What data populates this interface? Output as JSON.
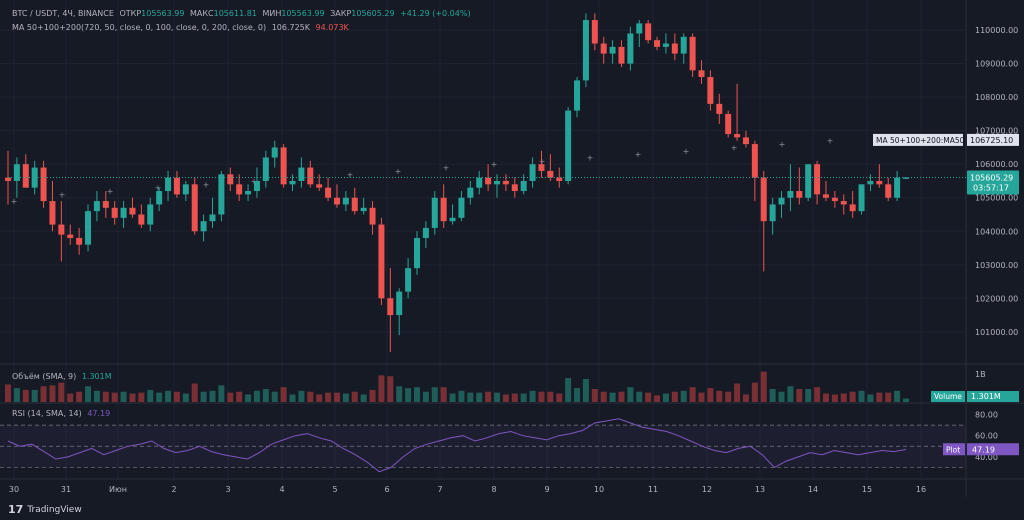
{
  "legend": {
    "symbol": "BTC / USDT, 4Ч, BINANCE",
    "open_label": "ОТКР",
    "open_value": "105563.99",
    "high_label": "МАКС",
    "high_value": "105611.81",
    "low_label": "МИН",
    "low_value": "105563.99",
    "close_label": "ЗАКР",
    "close_value": "105605.29",
    "change": "+41.29 (+0.04%)",
    "ma_name": "MA 50+100+200",
    "ma_params": "(720, 50, close, 0, 100, close, 0, 200, close, 0)",
    "ma_value_1": "106.725K",
    "ma_value_2": "94.073K"
  },
  "volume_legend": {
    "label": "Объём (SMA, 9)",
    "value": "1.301M"
  },
  "rsi_legend": {
    "label": "RSI (14, SMA, 14)",
    "value": "47.19"
  },
  "price_axis_labels": [
    "110000.00",
    "109000.00",
    "108000.00",
    "107000.00",
    "106000.00",
    "105000.00",
    "104000.00",
    "103000.00",
    "102000.00",
    "101000.00"
  ],
  "price_tags": {
    "ma_tag": "MA 50+100+200:MA50",
    "ma_value": "106725.10",
    "price": "105605.29",
    "countdown": "03:57:17"
  },
  "volume_axis": {
    "label": "1B",
    "tag_label": "Volume",
    "tag_value": "1.301M"
  },
  "rsi_axis": {
    "labels": [
      "80.00",
      "60.00",
      "40.00"
    ],
    "tag_label": "Plot",
    "tag_value": "47.19"
  },
  "time_axis": [
    "30",
    "31",
    "Июн",
    "2",
    "3",
    "4",
    "5",
    "6",
    "7",
    "8",
    "9",
    "10",
    "11",
    "12",
    "13",
    "14",
    "15",
    "16"
  ],
  "branding": "TradingView",
  "colors": {
    "up": "#26a69a",
    "down": "#ef5350",
    "rsi": "#7e57c2",
    "background": "#161a25"
  },
  "chart_data": {
    "type": "candlestick",
    "symbol": "BTC / USDT",
    "timeframe": "4Ч",
    "candles": [
      {
        "o": 105600,
        "h": 106400,
        "l": 104800,
        "c": 105500
      },
      {
        "o": 105500,
        "h": 106200,
        "l": 105000,
        "c": 106000
      },
      {
        "o": 106000,
        "h": 106300,
        "l": 105300,
        "c": 105300
      },
      {
        "o": 105300,
        "h": 106100,
        "l": 105100,
        "c": 105900
      },
      {
        "o": 105900,
        "h": 106100,
        "l": 104700,
        "c": 104900
      },
      {
        "o": 104900,
        "h": 105500,
        "l": 104000,
        "c": 104200
      },
      {
        "o": 104200,
        "h": 104900,
        "l": 103100,
        "c": 103900
      },
      {
        "o": 103900,
        "h": 104200,
        "l": 103600,
        "c": 103800
      },
      {
        "o": 103800,
        "h": 104100,
        "l": 103300,
        "c": 103600
      },
      {
        "o": 103600,
        "h": 104800,
        "l": 103400,
        "c": 104600
      },
      {
        "o": 104600,
        "h": 105200,
        "l": 104300,
        "c": 104900
      },
      {
        "o": 104900,
        "h": 105200,
        "l": 104400,
        "c": 104700
      },
      {
        "o": 104700,
        "h": 104900,
        "l": 104200,
        "c": 104400
      },
      {
        "o": 104400,
        "h": 104900,
        "l": 104100,
        "c": 104700
      },
      {
        "o": 104700,
        "h": 105000,
        "l": 104400,
        "c": 104500
      },
      {
        "o": 104500,
        "h": 104800,
        "l": 104100,
        "c": 104200
      },
      {
        "o": 104200,
        "h": 105000,
        "l": 104000,
        "c": 104800
      },
      {
        "o": 104800,
        "h": 105300,
        "l": 104600,
        "c": 105200
      },
      {
        "o": 105200,
        "h": 105800,
        "l": 104900,
        "c": 105600
      },
      {
        "o": 105600,
        "h": 105800,
        "l": 105000,
        "c": 105100
      },
      {
        "o": 105100,
        "h": 105500,
        "l": 104900,
        "c": 105400
      },
      {
        "o": 105400,
        "h": 105600,
        "l": 103900,
        "c": 104000
      },
      {
        "o": 104000,
        "h": 104500,
        "l": 103700,
        "c": 104300
      },
      {
        "o": 104300,
        "h": 105000,
        "l": 104100,
        "c": 104500
      },
      {
        "o": 104500,
        "h": 105800,
        "l": 104300,
        "c": 105700
      },
      {
        "o": 105700,
        "h": 105900,
        "l": 105200,
        "c": 105400
      },
      {
        "o": 105400,
        "h": 105700,
        "l": 104900,
        "c": 105100
      },
      {
        "o": 105100,
        "h": 105400,
        "l": 104900,
        "c": 105200
      },
      {
        "o": 105200,
        "h": 105900,
        "l": 105000,
        "c": 105500
      },
      {
        "o": 105500,
        "h": 106400,
        "l": 105300,
        "c": 106200
      },
      {
        "o": 106200,
        "h": 106700,
        "l": 105900,
        "c": 106500
      },
      {
        "o": 106500,
        "h": 106600,
        "l": 105300,
        "c": 105400
      },
      {
        "o": 105400,
        "h": 105700,
        "l": 105200,
        "c": 105500
      },
      {
        "o": 105500,
        "h": 106200,
        "l": 105300,
        "c": 105900
      },
      {
        "o": 105900,
        "h": 106100,
        "l": 105300,
        "c": 105400
      },
      {
        "o": 105400,
        "h": 105700,
        "l": 105200,
        "c": 105300
      },
      {
        "o": 105300,
        "h": 105600,
        "l": 104900,
        "c": 105000
      },
      {
        "o": 105000,
        "h": 105400,
        "l": 104700,
        "c": 104800
      },
      {
        "o": 104800,
        "h": 105200,
        "l": 104600,
        "c": 105000
      },
      {
        "o": 105000,
        "h": 105300,
        "l": 104500,
        "c": 104600
      },
      {
        "o": 104600,
        "h": 105000,
        "l": 104500,
        "c": 104700
      },
      {
        "o": 104700,
        "h": 104900,
        "l": 103900,
        "c": 104200
      },
      {
        "o": 104200,
        "h": 104400,
        "l": 101800,
        "c": 102000
      },
      {
        "o": 102000,
        "h": 102900,
        "l": 100400,
        "c": 101500
      },
      {
        "o": 101500,
        "h": 102300,
        "l": 100900,
        "c": 102200
      },
      {
        "o": 102200,
        "h": 103200,
        "l": 102000,
        "c": 102900
      },
      {
        "o": 102900,
        "h": 104000,
        "l": 102700,
        "c": 103800
      },
      {
        "o": 103800,
        "h": 104300,
        "l": 103500,
        "c": 104100
      },
      {
        "o": 104100,
        "h": 105200,
        "l": 103900,
        "c": 105000
      },
      {
        "o": 105000,
        "h": 105400,
        "l": 104100,
        "c": 104300
      },
      {
        "o": 104300,
        "h": 104800,
        "l": 104200,
        "c": 104400
      },
      {
        "o": 104400,
        "h": 105200,
        "l": 104300,
        "c": 105000
      },
      {
        "o": 105000,
        "h": 105500,
        "l": 104800,
        "c": 105300
      },
      {
        "o": 105300,
        "h": 105800,
        "l": 105100,
        "c": 105600
      },
      {
        "o": 105600,
        "h": 106000,
        "l": 105200,
        "c": 105400
      },
      {
        "o": 105400,
        "h": 105700,
        "l": 105000,
        "c": 105500
      },
      {
        "o": 105500,
        "h": 105700,
        "l": 105200,
        "c": 105400
      },
      {
        "o": 105400,
        "h": 105600,
        "l": 105000,
        "c": 105200
      },
      {
        "o": 105200,
        "h": 105700,
        "l": 105100,
        "c": 105500
      },
      {
        "o": 105500,
        "h": 106200,
        "l": 105300,
        "c": 106000
      },
      {
        "o": 106000,
        "h": 106400,
        "l": 105600,
        "c": 105800
      },
      {
        "o": 105800,
        "h": 106300,
        "l": 105500,
        "c": 105600
      },
      {
        "o": 105600,
        "h": 105900,
        "l": 105300,
        "c": 105500
      },
      {
        "o": 105500,
        "h": 107700,
        "l": 105400,
        "c": 107600
      },
      {
        "o": 107600,
        "h": 108600,
        "l": 107400,
        "c": 108500
      },
      {
        "o": 108500,
        "h": 110500,
        "l": 108300,
        "c": 110300
      },
      {
        "o": 110300,
        "h": 110500,
        "l": 109400,
        "c": 109600
      },
      {
        "o": 109600,
        "h": 109800,
        "l": 109000,
        "c": 109300
      },
      {
        "o": 109300,
        "h": 109700,
        "l": 109000,
        "c": 109500
      },
      {
        "o": 109500,
        "h": 109700,
        "l": 108900,
        "c": 109000
      },
      {
        "o": 109000,
        "h": 110100,
        "l": 108800,
        "c": 109900
      },
      {
        "o": 109900,
        "h": 110300,
        "l": 109500,
        "c": 110200
      },
      {
        "o": 110200,
        "h": 110300,
        "l": 109600,
        "c": 109700
      },
      {
        "o": 109700,
        "h": 109800,
        "l": 109400,
        "c": 109500
      },
      {
        "o": 109500,
        "h": 109900,
        "l": 109300,
        "c": 109600
      },
      {
        "o": 109600,
        "h": 109900,
        "l": 109100,
        "c": 109300
      },
      {
        "o": 109300,
        "h": 109900,
        "l": 109000,
        "c": 109800
      },
      {
        "o": 109800,
        "h": 109900,
        "l": 108600,
        "c": 108800
      },
      {
        "o": 108800,
        "h": 109100,
        "l": 108400,
        "c": 108600
      },
      {
        "o": 108600,
        "h": 108800,
        "l": 107600,
        "c": 107800
      },
      {
        "o": 107800,
        "h": 108100,
        "l": 107200,
        "c": 107500
      },
      {
        "o": 107500,
        "h": 107600,
        "l": 106800,
        "c": 106900
      },
      {
        "o": 106900,
        "h": 108400,
        "l": 106700,
        "c": 106800
      },
      {
        "o": 106800,
        "h": 107000,
        "l": 106500,
        "c": 106600
      },
      {
        "o": 106600,
        "h": 106700,
        "l": 104900,
        "c": 105600
      },
      {
        "o": 105600,
        "h": 105800,
        "l": 102800,
        "c": 104300
      },
      {
        "o": 104300,
        "h": 105000,
        "l": 103900,
        "c": 104800
      },
      {
        "o": 104800,
        "h": 105200,
        "l": 104400,
        "c": 105000
      },
      {
        "o": 105000,
        "h": 106000,
        "l": 104600,
        "c": 105200
      },
      {
        "o": 105200,
        "h": 105900,
        "l": 104800,
        "c": 105000
      },
      {
        "o": 105000,
        "h": 106000,
        "l": 104900,
        "c": 106000
      },
      {
        "o": 106000,
        "h": 106100,
        "l": 104800,
        "c": 105100
      },
      {
        "o": 105100,
        "h": 105500,
        "l": 104900,
        "c": 105000
      },
      {
        "o": 105000,
        "h": 105200,
        "l": 104700,
        "c": 104900
      },
      {
        "o": 104900,
        "h": 105100,
        "l": 104500,
        "c": 104800
      },
      {
        "o": 104800,
        "h": 105200,
        "l": 104400,
        "c": 104600
      },
      {
        "o": 104600,
        "h": 105400,
        "l": 104500,
        "c": 105400
      },
      {
        "o": 105400,
        "h": 105700,
        "l": 105200,
        "c": 105500
      },
      {
        "o": 105500,
        "h": 106000,
        "l": 105300,
        "c": 105400
      },
      {
        "o": 105400,
        "h": 105600,
        "l": 104900,
        "c": 105000
      },
      {
        "o": 105000,
        "h": 105800,
        "l": 104900,
        "c": 105600
      },
      {
        "o": 105564,
        "h": 105612,
        "l": 105564,
        "c": 105605
      }
    ],
    "ma50_levels": [
      104900,
      105100,
      105200,
      105300,
      105400,
      105500,
      105600,
      105700,
      105800,
      105900,
      106000,
      106100,
      106200,
      106300,
      106400,
      106500,
      106600,
      106700,
      106725,
      106725
    ],
    "rsi": [
      55,
      50,
      52,
      45,
      38,
      40,
      44,
      48,
      42,
      46,
      50,
      52,
      55,
      48,
      44,
      46,
      50,
      45,
      42,
      40,
      38,
      44,
      52,
      56,
      60,
      62,
      58,
      55,
      48,
      42,
      35,
      26,
      30,
      40,
      48,
      52,
      55,
      58,
      60,
      55,
      58,
      62,
      64,
      60,
      58,
      56,
      60,
      62,
      65,
      72,
      74,
      76,
      72,
      68,
      66,
      64,
      60,
      55,
      50,
      46,
      44,
      48,
      50,
      42,
      30,
      36,
      40,
      44,
      42,
      46,
      44,
      42,
      44,
      46,
      45,
      47
    ],
    "volume_trend": "sma9",
    "price_range": [
      100100,
      110600
    ],
    "rsi_levels": [
      70,
      50,
      30
    ]
  }
}
